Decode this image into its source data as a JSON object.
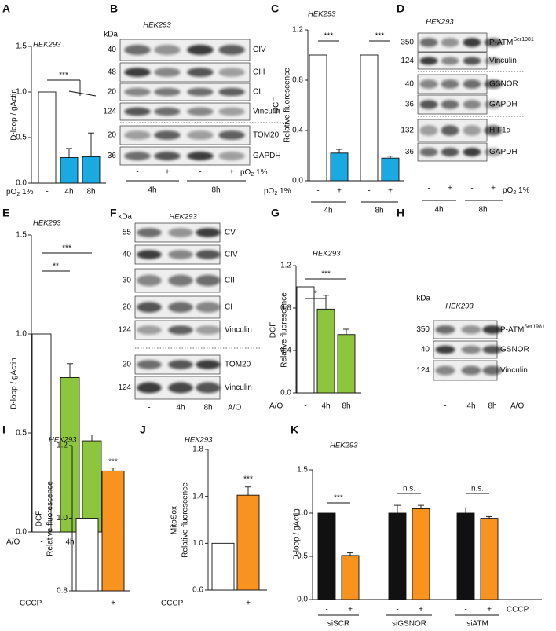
{
  "chart_data": [
    {
      "type": "bar",
      "label": "A",
      "title": "HEK293",
      "ylabel": [
        "D-loop / gActin"
      ],
      "categories": [
        "-",
        "4h",
        "8h"
      ],
      "values": [
        1.0,
        0.28,
        0.29
      ],
      "errors": [
        null,
        0.1,
        0.26
      ],
      "colors": [
        "#ffffff",
        "#1ba9e1",
        "#1ba9e1"
      ],
      "ylim": [
        0,
        1.5
      ],
      "yticks": [
        {
          "value": 0,
          "label": "0.0"
        },
        0.5,
        {
          "value": 1,
          "label": "1.0"
        },
        1.5
      ],
      "annotations": [
        "***"
      ],
      "xlabel": {
        "main": "pO",
        "sub": "2",
        "rest": " 1%"
      }
    },
    {
      "type": "bar",
      "label": "C",
      "title": "HEK293",
      "ylabel": [
        "DCF",
        "Relative fluorescence"
      ],
      "categories": [
        "-",
        "+",
        "-",
        "+"
      ],
      "groups": [
        "4h",
        "8h"
      ],
      "values": [
        1.0,
        0.22,
        1.0,
        0.18
      ],
      "errors": [
        null,
        0.03,
        null,
        0.015
      ],
      "colors": [
        "#ffffff",
        "#1ba9e1",
        "#ffffff",
        "#1ba9e1"
      ],
      "ylim": [
        0,
        1.2
      ],
      "yticks": [
        {
          "value": 0,
          "label": "0.0"
        },
        0.4,
        0.8,
        1.2
      ],
      "annotations": [
        "***",
        "***"
      ],
      "xlabel": {
        "main": "pO",
        "sub": "2",
        "rest": " 1%"
      }
    },
    {
      "type": "bar",
      "label": "E",
      "title": "HEK293",
      "ylabel": [
        "D-loop / gActin"
      ],
      "categories": [
        "-",
        "4h",
        "8h"
      ],
      "values": [
        1.0,
        0.78,
        0.46
      ],
      "errors": [
        null,
        0.07,
        0.03
      ],
      "colors": [
        "#ffffff",
        "#8cc63e",
        "#8cc63e"
      ],
      "ylim": [
        0,
        1.5
      ],
      "yticks": [
        {
          "value": 0,
          "label": "0.0"
        },
        0.5,
        {
          "value": 1,
          "label": "1.0"
        },
        1.5
      ],
      "annotations": [
        "**",
        "***"
      ],
      "xlabel": "A/O"
    },
    {
      "type": "bar",
      "label": "G",
      "title": "HEK293",
      "ylabel": [
        "DCF",
        "Relative fluorescence"
      ],
      "categories": [
        "-",
        "4h",
        "8h"
      ],
      "values": [
        1.0,
        0.79,
        0.55
      ],
      "errors": [
        null,
        0.13,
        0.05
      ],
      "colors": [
        "#ffffff",
        "#8cc63e",
        "#8cc63e"
      ],
      "ylim": [
        0,
        1.2
      ],
      "yticks": [
        {
          "value": 0,
          "label": "0.0"
        },
        0.4,
        0.8,
        1.2
      ],
      "annotations": [
        "*",
        "***"
      ],
      "xlabel": "A/O"
    },
    {
      "type": "bar",
      "label": "I",
      "title": "HEK293",
      "ylabel": [
        "DCF",
        "Relative fluorescence"
      ],
      "categories": [
        "-",
        "+"
      ],
      "values": [
        1.0,
        1.13
      ],
      "errors": [
        null,
        0.008
      ],
      "colors": [
        "#ffffff",
        "#f7931e"
      ],
      "ylim": [
        0.8,
        1.2
      ],
      "yticks": [
        0.8,
        {
          "value": 1,
          "label": "1.0"
        },
        1.2
      ],
      "annotations": [
        "***"
      ],
      "xlabel": "CCCP"
    },
    {
      "type": "bar",
      "label": "J",
      "title": "HEK293",
      "ylabel": [
        "MitoSox",
        "Relative fluorescence"
      ],
      "categories": [
        "-",
        "+"
      ],
      "values": [
        1.0,
        1.41
      ],
      "errors": [
        null,
        0.07
      ],
      "colors": [
        "#ffffff",
        "#f7931e"
      ],
      "ylim": [
        0.6,
        1.8
      ],
      "yticks": [
        0.6,
        {
          "value": 1,
          "label": "1.0"
        },
        1.4,
        1.8
      ],
      "annotations": [
        "***"
      ],
      "xlabel": "CCCP"
    },
    {
      "type": "bar",
      "label": "K",
      "title": "HEK293",
      "ylabel": [
        "D-loop / gActin"
      ],
      "categories": [
        "-",
        "+",
        "-",
        "+",
        "-",
        "+"
      ],
      "groups": [
        "siSCR",
        "siGSNOR",
        "siATM"
      ],
      "values": [
        1.0,
        0.51,
        1.0,
        1.05,
        1.0,
        0.94
      ],
      "errors": [
        null,
        0.03,
        0.09,
        0.04,
        0.06,
        0.02
      ],
      "colors": [
        "#111111",
        "#f7931e",
        "#111111",
        "#f7931e",
        "#111111",
        "#f7931e"
      ],
      "ylim": [
        0,
        1.5
      ],
      "yticks": [
        {
          "value": 0,
          "label": "0.0"
        },
        0.5,
        {
          "value": 1,
          "label": "1.0"
        },
        1.5
      ],
      "annotations": [
        "***",
        "n.s.",
        "n.s."
      ],
      "xlabel": "CCCP"
    }
  ],
  "blots": [
    {
      "label": "B",
      "title": "HEK293",
      "unit": "kDa",
      "rows": [
        {
          "mw": 40,
          "name": "CIV"
        },
        {
          "mw": 48,
          "name": "CIII"
        },
        {
          "mw": 20,
          "name": "CI"
        },
        {
          "mw": 124,
          "name": "Vinculin"
        },
        {
          "mw": 20,
          "name": "TOM20"
        },
        {
          "mw": 36,
          "name": "GAPDH"
        }
      ],
      "lanes": [
        "-",
        "+",
        "-",
        "+"
      ],
      "groups": [
        "4h",
        "8h"
      ],
      "treatment": {
        "main": "pO",
        "sub": "2",
        "rest": " 1%"
      }
    },
    {
      "label": "D",
      "title": "HEK293",
      "rows": [
        {
          "mw": 350,
          "name": {
            "main": "P-ATM",
            "sup": "Ser1981"
          }
        },
        {
          "mw": 124,
          "name": "Vinculin"
        },
        {
          "mw": 40,
          "name": "GSNOR"
        },
        {
          "mw": 36,
          "name": "GAPDH"
        },
        {
          "mw": 132,
          "name": "HIF1α"
        },
        {
          "mw": 36,
          "name": "GAPDH"
        }
      ],
      "lanes": [
        "-",
        "+",
        "-",
        "+"
      ],
      "groups": [
        "4h",
        "8h"
      ],
      "treatment": {
        "main": "pO",
        "sub": "2",
        "rest": " 1%"
      }
    },
    {
      "label": "F",
      "title": "HEK293",
      "unit": "kDa",
      "rows": [
        {
          "mw": 55,
          "name": "CV"
        },
        {
          "mw": 40,
          "name": "CIV"
        },
        {
          "mw": 30,
          "name": "CII"
        },
        {
          "mw": 20,
          "name": "CI"
        },
        {
          "mw": 124,
          "name": "Vinculin"
        },
        {
          "mw": 20,
          "name": "TOM20"
        },
        {
          "mw": 124,
          "name": "Vinculin"
        }
      ],
      "lanes": [
        "-",
        "4h",
        "8h"
      ],
      "treatment": "A/O"
    },
    {
      "label": "H",
      "title": "HEK293",
      "unit": "kDa",
      "rows": [
        {
          "mw": 350,
          "name": {
            "main": "P-ATM",
            "sup": "Ser1981"
          }
        },
        {
          "mw": 40,
          "name": "GSNOR"
        },
        {
          "mw": 124,
          "name": "Vinculin"
        }
      ],
      "lanes": [
        "-",
        "4h",
        "8h"
      ],
      "treatment": "A/O"
    }
  ]
}
